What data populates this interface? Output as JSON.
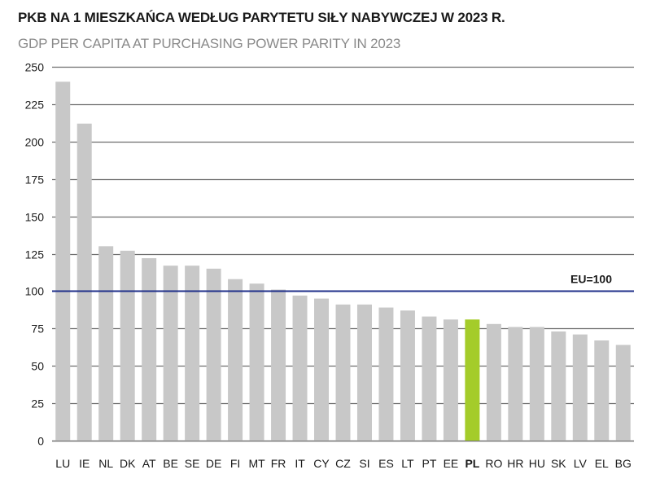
{
  "header": {
    "title": "PKB NA 1 MIESZKAŃCA WEDŁUG PARYTETU SIŁY NABYWCZEJ W 2023 R.",
    "subtitle": "GDP PER CAPITA AT PURCHASING POWER PARITY IN 2023"
  },
  "colors": {
    "bar": "#c8c8c8",
    "highlight_bar": "#a4cc2a",
    "reference_line": "#1f2f8a",
    "gridline": "#6e6e6e"
  },
  "chart_data": {
    "type": "bar",
    "title": "PKB NA 1 MIESZKAŃCA WEDŁUG PARYTETU SIŁY NABYWCZEJ W 2023 R.",
    "subtitle": "GDP PER CAPITA AT PURCHASING POWER PARITY IN 2023",
    "xlabel": "",
    "ylabel": "",
    "ylim": [
      0,
      250
    ],
    "yticks": [
      0,
      25,
      50,
      75,
      100,
      125,
      150,
      175,
      200,
      225,
      250
    ],
    "grid": true,
    "legend": "none",
    "categories": [
      "LU",
      "IE",
      "NL",
      "DK",
      "AT",
      "BE",
      "SE",
      "DE",
      "FI",
      "MT",
      "FR",
      "IT",
      "CY",
      "CZ",
      "SI",
      "ES",
      "LT",
      "PT",
      "EE",
      "PL",
      "RO",
      "HR",
      "HU",
      "SK",
      "LV",
      "EL",
      "BG"
    ],
    "values": [
      240,
      212,
      130,
      127,
      122,
      117,
      117,
      115,
      108,
      105,
      101,
      97,
      95,
      91,
      91,
      89,
      87,
      83,
      81,
      81,
      78,
      76,
      76,
      73,
      71,
      67,
      64
    ],
    "highlight": "PL",
    "reference_line": {
      "value": 100,
      "label": "EU=100"
    }
  }
}
